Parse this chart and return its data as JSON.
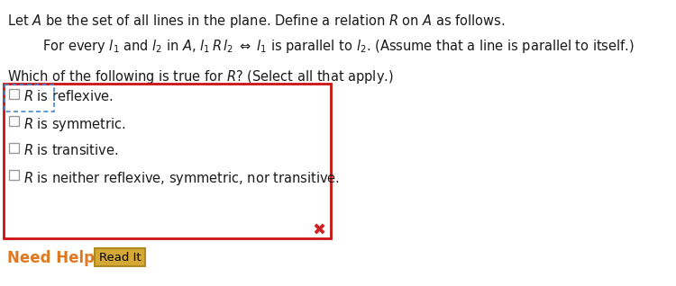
{
  "bg_color": "#ffffff",
  "text_color": "#1a1a1a",
  "title_line": "Let $A$ be the set of all lines in the plane. Define a relation $R$ on $A$ as follows.",
  "formula_line": "For every $l_1$ and $l_2$ in $A$, $l_1\\,R\\,l_2 \\;\\Leftrightarrow\\; l_1$ is parallel to $l_2$. (Assume that a line is parallel to itself.)",
  "question_line": "Which of the following is true for $R$? (Select all that apply.)",
  "options": [
    "$R$ is reflexive.",
    "$R$ is symmetric.",
    "$R$ is transitive.",
    "$R$ is neither reflexive, symmetric, nor transitive."
  ],
  "red_box_color": "#cc1111",
  "blue_dashed_color": "#4488cc",
  "need_help_color": "#e07820",
  "read_it_bg": "#d4a835",
  "read_it_border": "#b08820",
  "x_mark_color": "#cc2222",
  "checkbox_color": "#999999",
  "font_size_title": 10.5,
  "font_size_formula": 10.5,
  "font_size_options": 10.5,
  "font_size_need_help": 12,
  "font_size_read_it": 9.5
}
